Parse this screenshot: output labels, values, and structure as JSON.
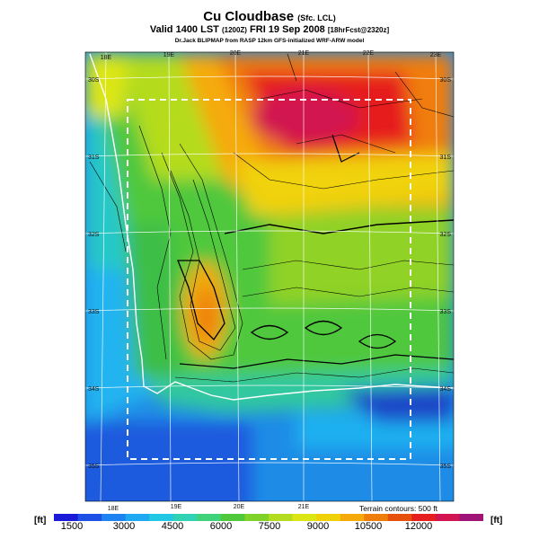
{
  "header": {
    "title": "Cu Cloudbase",
    "title_suffix": "(Sfc. LCL)",
    "valid_main": "Valid 1400 LST",
    "valid_utc": "(1200Z)",
    "valid_date": "FRI 19 Sep 2008",
    "forecast_info": "[18hrFcst@2320z]",
    "model_line": "Dr.Jack BLIPMAP from RASP 12km GFS-initialized WRF-ARW model"
  },
  "map": {
    "lon_labels_top": [
      "18E",
      "19E",
      "20E",
      "21E",
      "22E",
      "23E"
    ],
    "lon_labels_bottom": [
      "18E",
      "19E",
      "20E",
      "21E"
    ],
    "lat_labels_left": [
      "30S",
      "31S",
      "32S",
      "33S",
      "34S",
      "35S"
    ],
    "lat_labels_right": [
      "30S",
      "31S",
      "32S",
      "33S",
      "34S",
      "35S"
    ],
    "terrain_note": "Terrain contours: 500 ft"
  },
  "colorbar": {
    "unit_left": "[ft]",
    "unit_right": "[ft]",
    "ticks": [
      "1500",
      "3000",
      "4500",
      "6000",
      "7500",
      "9000",
      "10500",
      "12000"
    ],
    "colors": [
      "#1a1ad8",
      "#1e50e6",
      "#1e82f0",
      "#1eaaf0",
      "#20c8e6",
      "#30d2b4",
      "#40d278",
      "#50c83c",
      "#80d228",
      "#b4dc1e",
      "#dce614",
      "#f0d20a",
      "#f5aa0a",
      "#f07d0a",
      "#e6500a",
      "#e61e1e",
      "#d21450",
      "#a01478"
    ]
  }
}
